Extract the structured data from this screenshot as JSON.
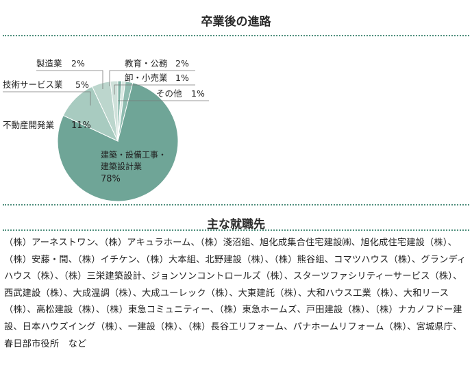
{
  "section1": {
    "title": "卒業後の進路"
  },
  "section2": {
    "title": "主な就職先"
  },
  "employers_text": "（株）アーネストワン、（株）アキュラホーム、（株）淺沼組、旭化成集合住宅建設㈱、旭化成住宅建設（株）、（株）安藤・間、（株）イチケン、（株）大本組、北野建設（株）、（株）熊谷組、コマツハウス（株）、グランディハウス（株）、（株）三栄建築設計、ジョンソンコントロールズ（株）、スターツファシリティーサービス（株）、西武建設（株）、大成温調（株）、大成ユーレック（株）、大東建託（株）、大和ハウス工業（株）、大和リース（株）、高松建設（株）、（株）東急コミュニティー、（株）東急ホームズ、戸田建設（株）、（株）ナカノフドー建設、日本ハウズイング（株）、一建設（株）、（株）長谷工リフォーム、パナホームリフォーム（株）、宮城県庁、春日部市役所　など",
  "chart_data": {
    "type": "pie",
    "title": "",
    "slices": [
      {
        "label": "建築・設備工事・建築設計業",
        "label_lines": [
          "建築・設備工事・",
          "建築設計業"
        ],
        "value": 78,
        "value_text": "78%",
        "color": "#6fa597"
      },
      {
        "label": "不動産開発業",
        "value": 11,
        "value_text": "11%",
        "color": "#a8cbc0"
      },
      {
        "label": "技術サービス業",
        "value": 5,
        "value_text": "5%",
        "color": "#bcd6cd"
      },
      {
        "label": "製造業",
        "value": 2,
        "value_text": "2%",
        "color": "#cfe1da"
      },
      {
        "label": "教育・公務",
        "value": 2,
        "value_text": "2%",
        "color": "#8fbcb0"
      },
      {
        "label": "卸・小売業",
        "value": 1,
        "value_text": "1%",
        "color": "#d9e8e2"
      },
      {
        "label": "その他",
        "value": 1,
        "value_text": "1%",
        "color": "#7fb3a5"
      }
    ]
  }
}
